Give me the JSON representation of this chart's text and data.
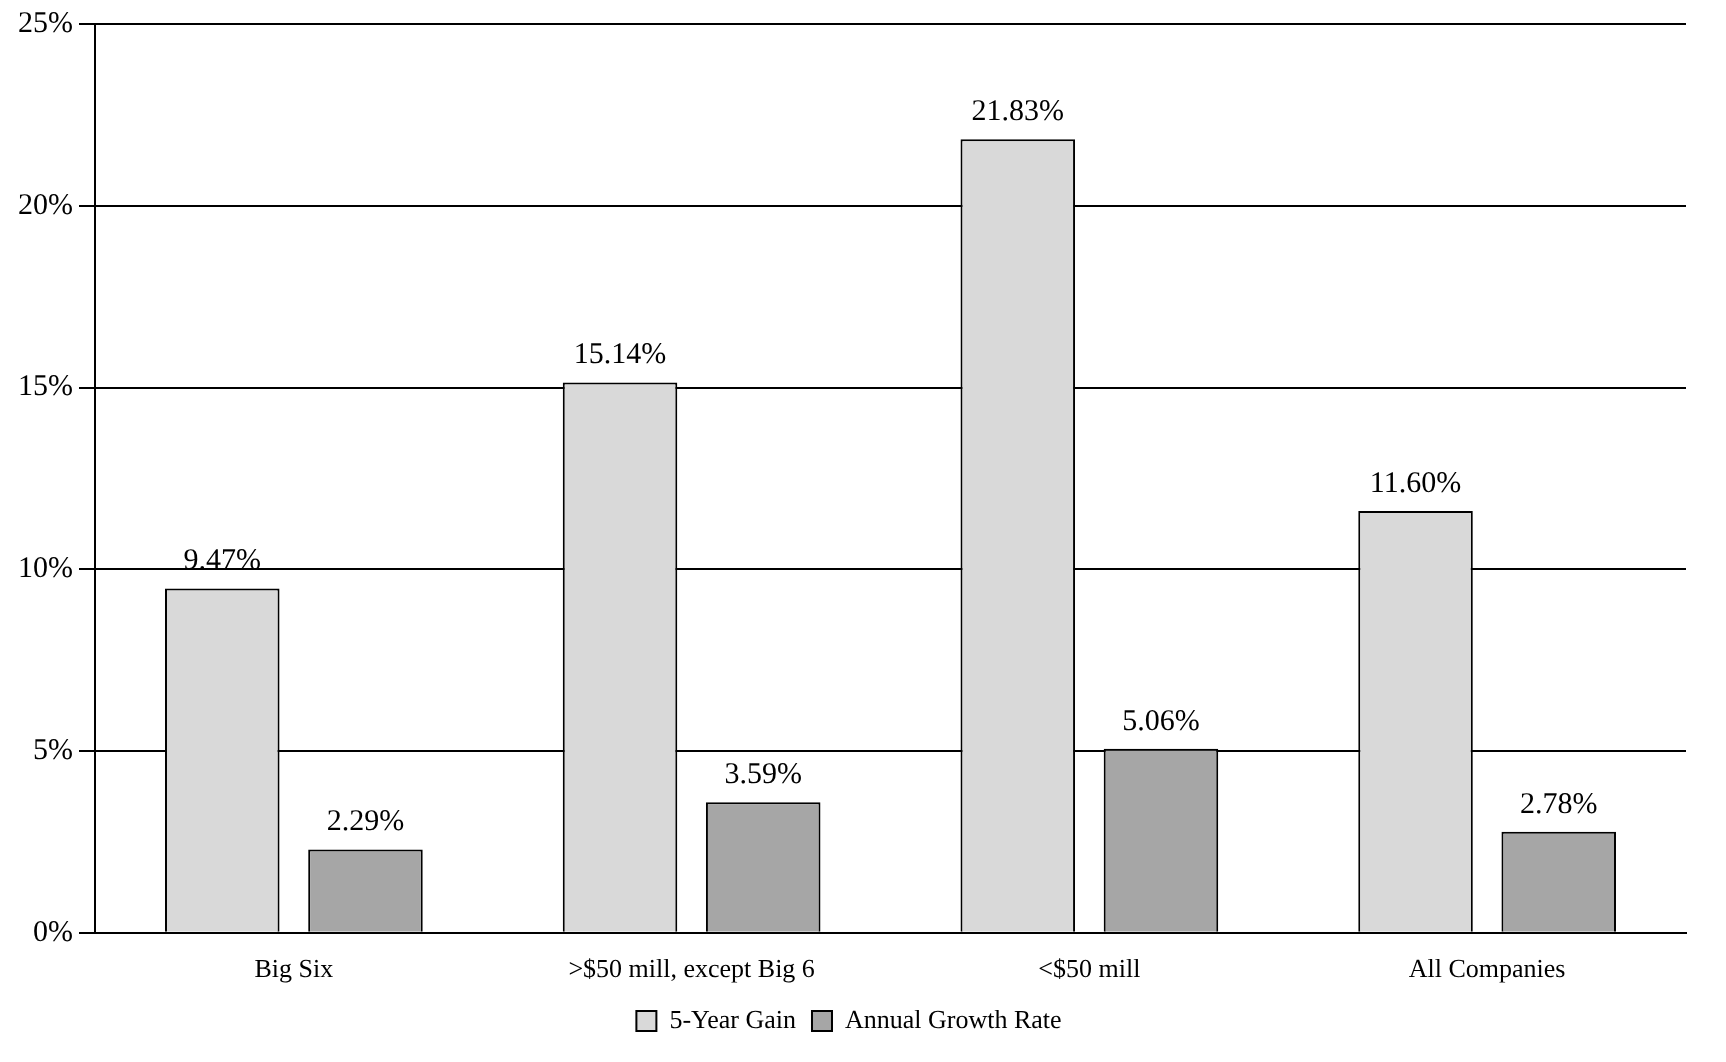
{
  "chart_data": {
    "type": "bar",
    "categories": [
      "Big Six",
      ">$50 mill, except Big 6",
      "<$50 mill",
      "All Companies"
    ],
    "series": [
      {
        "name": "5-Year Gain",
        "color": "#d9d9d9",
        "values": [
          9.47,
          15.14,
          21.83,
          11.6
        ],
        "value_labels": [
          "9.47%",
          "15.14%",
          "21.83%",
          "11.60%"
        ]
      },
      {
        "name": "Annual Growth Rate",
        "color": "#a6a6a6",
        "values": [
          2.29,
          3.59,
          5.06,
          2.78
        ],
        "value_labels": [
          "2.29%",
          "3.59%",
          "5.06%",
          "2.78%"
        ]
      }
    ],
    "ylim": [
      0,
      25
    ],
    "yticks": [
      {
        "value": 0,
        "label": "0%"
      },
      {
        "value": 5,
        "label": "5%"
      },
      {
        "value": 10,
        "label": "10%"
      },
      {
        "value": 15,
        "label": "15%"
      },
      {
        "value": 20,
        "label": "20%"
      },
      {
        "value": 25,
        "label": "25%"
      }
    ],
    "grid": "y",
    "legend": "bottom"
  }
}
